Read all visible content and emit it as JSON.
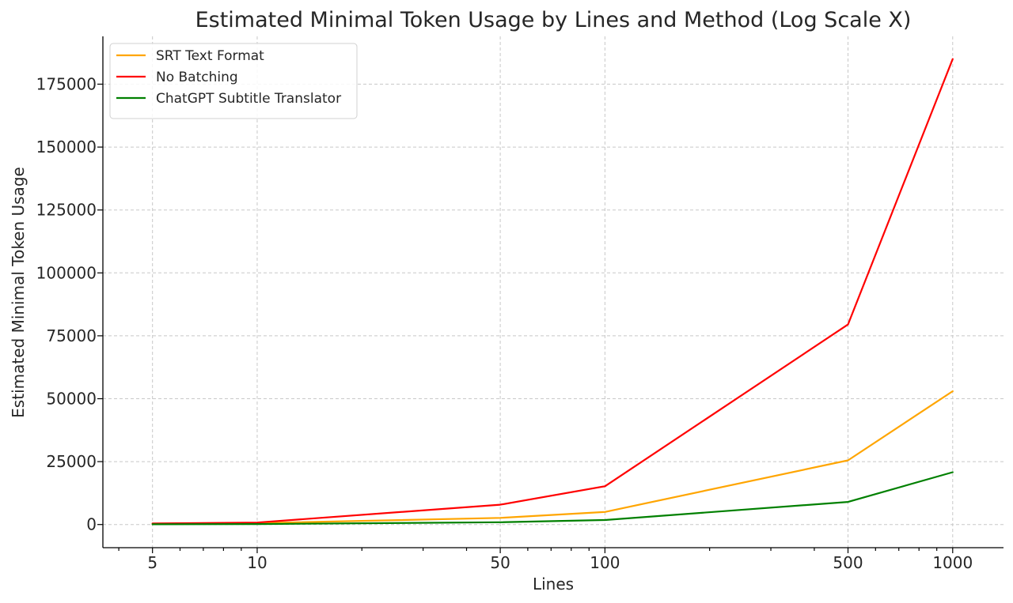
{
  "chart_data": {
    "type": "line",
    "title": "Estimated Minimal Token Usage by Lines and Method (Log Scale X)",
    "xlabel": "Lines",
    "ylabel": "Estimated Minimal Token Usage",
    "x_scale": "log",
    "x": [
      5,
      10,
      50,
      100,
      500,
      1000
    ],
    "x_tick_labels": [
      "5",
      "10",
      "50",
      "100",
      "500",
      "1000"
    ],
    "y_ticks": [
      0,
      25000,
      50000,
      75000,
      100000,
      125000,
      150000,
      175000
    ],
    "y_tick_labels": [
      "0",
      "25000",
      "50000",
      "75000",
      "100000",
      "125000",
      "150000",
      "175000"
    ],
    "xlim": [
      3.6,
      1400
    ],
    "ylim": [
      -9200,
      194000
    ],
    "grid": true,
    "legend_position": "top-left",
    "series": [
      {
        "name": "SRT Text Format",
        "color": "#ffa500",
        "values": [
          265,
          530,
          2650,
          5000,
          25500,
          53000
        ]
      },
      {
        "name": "No Batching",
        "color": "#ff0000",
        "values": [
          400,
          800,
          7900,
          15200,
          79500,
          185000
        ]
      },
      {
        "name": "ChatGPT Subtitle Translator",
        "color": "#008000",
        "values": [
          100,
          200,
          900,
          1800,
          9000,
          20800
        ]
      }
    ]
  }
}
